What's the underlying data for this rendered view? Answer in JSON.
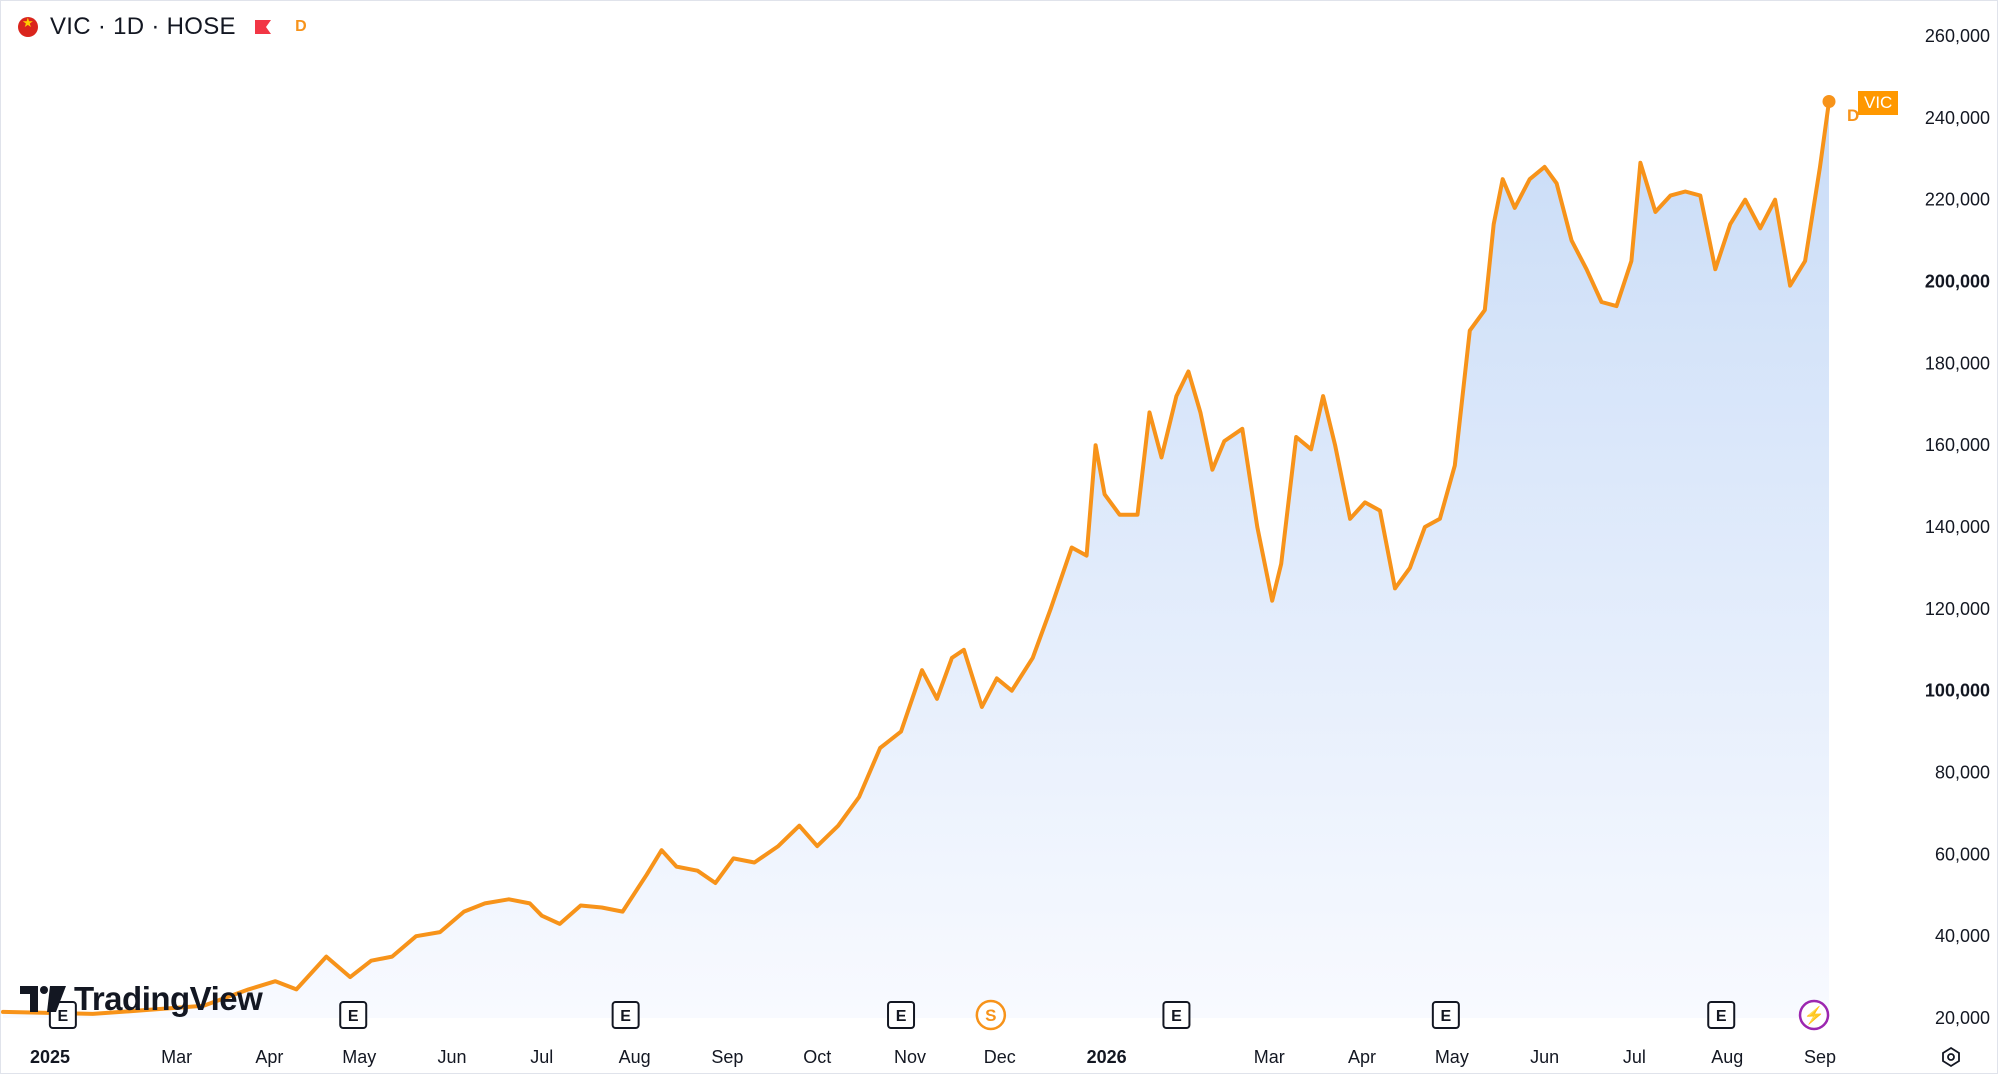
{
  "header": {
    "symbol_line": "VIC · 1D · HOSE",
    "badge": "D"
  },
  "logo": {
    "text": "TradingView"
  },
  "price_label": {
    "text": "VIC",
    "marker": "D"
  },
  "colors": {
    "line": "#f7931a",
    "fill_top": "#c9dcf7",
    "fill_bottom": "#f8faff",
    "label_bg": "#ff9800",
    "dividend": "#9c27b0"
  },
  "icons": [
    "vietnam-flag-icon",
    "red-flag-icon",
    "earnings-icon",
    "split-icon",
    "dividend-icon",
    "settings-icon"
  ],
  "chart_data": {
    "type": "area",
    "series": [
      {
        "name": "VIC",
        "points": [
          [
            "2025-01-02",
            21500
          ],
          [
            "2025-02-01",
            21000
          ],
          [
            "2025-02-20",
            22000
          ],
          [
            "2025-03-10",
            23000
          ],
          [
            "2025-03-25",
            27000
          ],
          [
            "2025-04-03",
            29000
          ],
          [
            "2025-04-10",
            27000
          ],
          [
            "2025-04-20",
            35000
          ],
          [
            "2025-04-28",
            30000
          ],
          [
            "2025-05-05",
            34000
          ],
          [
            "2025-05-12",
            35000
          ],
          [
            "2025-05-20",
            40000
          ],
          [
            "2025-05-28",
            41000
          ],
          [
            "2025-06-05",
            46000
          ],
          [
            "2025-06-12",
            48000
          ],
          [
            "2025-06-20",
            49000
          ],
          [
            "2025-06-27",
            48000
          ],
          [
            "2025-07-01",
            45000
          ],
          [
            "2025-07-07",
            43000
          ],
          [
            "2025-07-14",
            47500
          ],
          [
            "2025-07-21",
            47000
          ],
          [
            "2025-07-28",
            46000
          ],
          [
            "2025-08-05",
            55000
          ],
          [
            "2025-08-10",
            61000
          ],
          [
            "2025-08-15",
            57000
          ],
          [
            "2025-08-22",
            56000
          ],
          [
            "2025-08-28",
            53000
          ],
          [
            "2025-09-03",
            59000
          ],
          [
            "2025-09-10",
            58000
          ],
          [
            "2025-09-18",
            62000
          ],
          [
            "2025-09-25",
            67000
          ],
          [
            "2025-10-01",
            62000
          ],
          [
            "2025-10-08",
            67000
          ],
          [
            "2025-10-15",
            74000
          ],
          [
            "2025-10-22",
            86000
          ],
          [
            "2025-10-29",
            90000
          ],
          [
            "2025-11-05",
            105000
          ],
          [
            "2025-11-10",
            98000
          ],
          [
            "2025-11-15",
            108000
          ],
          [
            "2025-11-19",
            110000
          ],
          [
            "2025-11-25",
            96000
          ],
          [
            "2025-11-30",
            103000
          ],
          [
            "2025-12-05",
            100000
          ],
          [
            "2025-12-12",
            108000
          ],
          [
            "2025-12-18",
            120000
          ],
          [
            "2025-12-25",
            135000
          ],
          [
            "2025-12-30",
            133000
          ],
          [
            "2026-01-02",
            160000
          ],
          [
            "2026-01-05",
            148000
          ],
          [
            "2026-01-10",
            143000
          ],
          [
            "2026-01-16",
            143000
          ],
          [
            "2026-01-20",
            168000
          ],
          [
            "2026-01-24",
            157000
          ],
          [
            "2026-01-29",
            172000
          ],
          [
            "2026-02-02",
            178000
          ],
          [
            "2026-02-06",
            168000
          ],
          [
            "2026-02-10",
            154000
          ],
          [
            "2026-02-14",
            161000
          ],
          [
            "2026-02-20",
            164000
          ],
          [
            "2026-02-25",
            140000
          ],
          [
            "2026-03-02",
            122000
          ],
          [
            "2026-03-05",
            131000
          ],
          [
            "2026-03-10",
            162000
          ],
          [
            "2026-03-15",
            159000
          ],
          [
            "2026-03-19",
            172000
          ],
          [
            "2026-03-23",
            160000
          ],
          [
            "2026-03-28",
            142000
          ],
          [
            "2026-04-02",
            146000
          ],
          [
            "2026-04-07",
            144000
          ],
          [
            "2026-04-12",
            125000
          ],
          [
            "2026-04-17",
            130000
          ],
          [
            "2026-04-22",
            140000
          ],
          [
            "2026-04-27",
            142000
          ],
          [
            "2026-05-02",
            155000
          ],
          [
            "2026-05-07",
            188000
          ],
          [
            "2026-05-12",
            193000
          ],
          [
            "2026-05-15",
            214000
          ],
          [
            "2026-05-18",
            225000
          ],
          [
            "2026-05-22",
            218000
          ],
          [
            "2026-05-27",
            225000
          ],
          [
            "2026-06-01",
            228000
          ],
          [
            "2026-06-05",
            224000
          ],
          [
            "2026-06-10",
            210000
          ],
          [
            "2026-06-15",
            203000
          ],
          [
            "2026-06-20",
            195000
          ],
          [
            "2026-06-25",
            194000
          ],
          [
            "2026-06-30",
            205000
          ],
          [
            "2026-07-03",
            229000
          ],
          [
            "2026-07-08",
            217000
          ],
          [
            "2026-07-13",
            221000
          ],
          [
            "2026-07-18",
            222000
          ],
          [
            "2026-07-23",
            221000
          ],
          [
            "2026-07-28",
            203000
          ],
          [
            "2026-08-02",
            214000
          ],
          [
            "2026-08-07",
            220000
          ],
          [
            "2026-08-12",
            213000
          ],
          [
            "2026-08-17",
            220000
          ],
          [
            "2026-08-22",
            199000
          ],
          [
            "2026-08-27",
            205000
          ],
          [
            "2026-09-01",
            228000
          ],
          [
            "2026-09-04",
            244000
          ]
        ]
      }
    ],
    "x_range": [
      "2025-01-01",
      "2026-09-05"
    ],
    "ylim": [
      20000,
      260000
    ],
    "y_ticks": [
      {
        "value": 260000,
        "label": "260,000"
      },
      {
        "value": 240000,
        "label": "240,000"
      },
      {
        "value": 220000,
        "label": "220,000"
      },
      {
        "value": 200000,
        "label": "200,000"
      },
      {
        "value": 180000,
        "label": "180,000"
      },
      {
        "value": 160000,
        "label": "160,000"
      },
      {
        "value": 140000,
        "label": "140,000"
      },
      {
        "value": 120000,
        "label": "120,000"
      },
      {
        "value": 100000,
        "label": "100,000"
      },
      {
        "value": 80000,
        "label": "80,000"
      },
      {
        "value": 60000,
        "label": "60,000"
      },
      {
        "value": 40000,
        "label": "40,000"
      },
      {
        "value": 20000,
        "label": "20,000"
      }
    ],
    "bold_y_ticks": [
      200000,
      100000
    ],
    "x_ticks": [
      {
        "date": "2025-01-01",
        "label": "2025"
      },
      {
        "date": "2025-03-01",
        "label": "Mar"
      },
      {
        "date": "2025-04-01",
        "label": "Apr"
      },
      {
        "date": "2025-05-01",
        "label": "May"
      },
      {
        "date": "2025-06-01",
        "label": "Jun"
      },
      {
        "date": "2025-07-01",
        "label": "Jul"
      },
      {
        "date": "2025-08-01",
        "label": "Aug"
      },
      {
        "date": "2025-09-01",
        "label": "Sep"
      },
      {
        "date": "2025-10-01",
        "label": "Oct"
      },
      {
        "date": "2025-11-01",
        "label": "Nov"
      },
      {
        "date": "2025-12-01",
        "label": "Dec"
      },
      {
        "date": "2026-01-01",
        "label": "2026"
      },
      {
        "date": "2026-03-01",
        "label": "Mar"
      },
      {
        "date": "2026-04-01",
        "label": "Apr"
      },
      {
        "date": "2026-05-01",
        "label": "May"
      },
      {
        "date": "2026-06-01",
        "label": "Jun"
      },
      {
        "date": "2026-07-01",
        "label": "Jul"
      },
      {
        "date": "2026-08-01",
        "label": "Aug"
      },
      {
        "date": "2026-09-01",
        "label": "Sep"
      }
    ],
    "bold_x_ticks": [
      "2025",
      "2026"
    ],
    "events": [
      {
        "date": "2025-01-22",
        "type": "earnings",
        "label": "E"
      },
      {
        "date": "2025-04-29",
        "type": "earnings",
        "label": "E"
      },
      {
        "date": "2025-07-29",
        "type": "earnings",
        "label": "E"
      },
      {
        "date": "2025-10-29",
        "type": "earnings",
        "label": "E"
      },
      {
        "date": "2025-11-28",
        "type": "split",
        "label": "S"
      },
      {
        "date": "2026-01-29",
        "type": "earnings",
        "label": "E"
      },
      {
        "date": "2026-04-29",
        "type": "earnings",
        "label": "E"
      },
      {
        "date": "2026-07-30",
        "type": "earnings",
        "label": "E"
      },
      {
        "date": "2026-08-30",
        "type": "dividend",
        "label": "⚡"
      }
    ],
    "grid": false,
    "legend": "none"
  }
}
